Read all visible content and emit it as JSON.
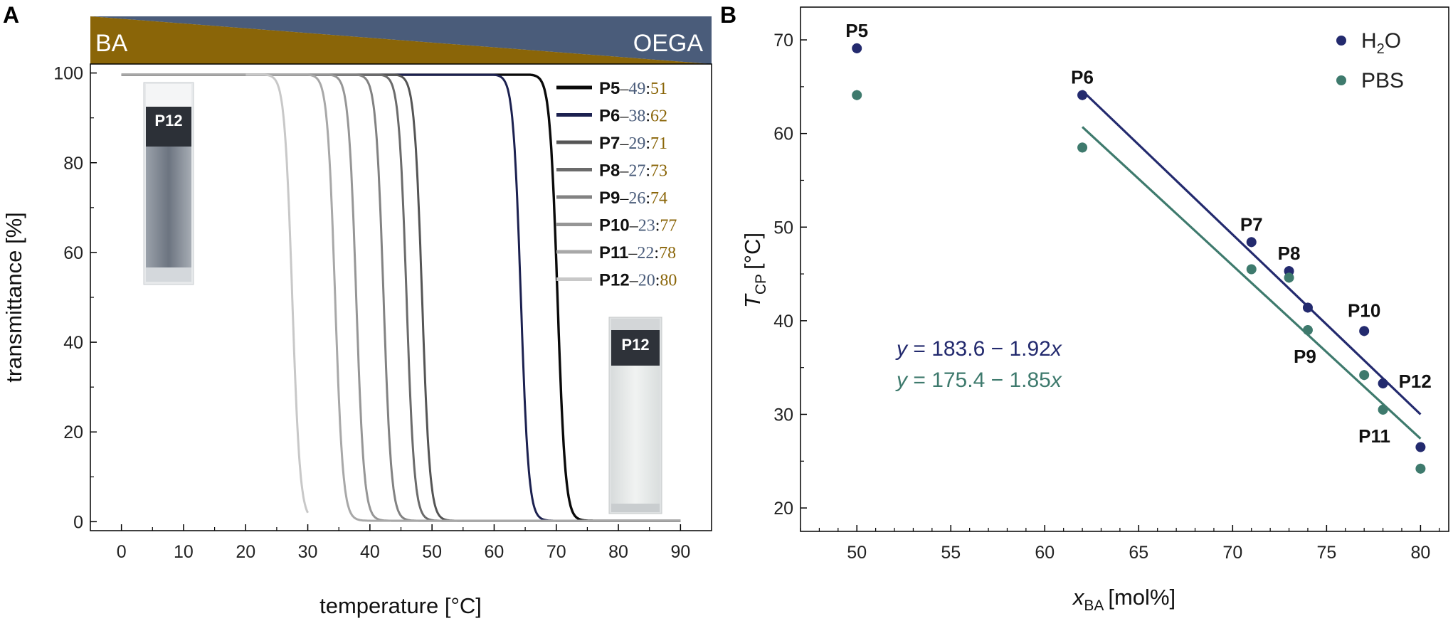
{
  "chart_data": [
    {
      "panel": "A",
      "type": "line",
      "xlabel": "temperature [°C]",
      "ylabel": "transmittance [%]",
      "xlim": [
        -5,
        95
      ],
      "ylim": [
        -2,
        102
      ],
      "xticks": [
        "0",
        "10",
        "20",
        "30",
        "40",
        "50",
        "60",
        "70",
        "80",
        "90"
      ],
      "yticks": [
        "0",
        "20",
        "40",
        "60",
        "80",
        "100"
      ],
      "gradient_bar": {
        "left_label": "BA",
        "right_label": "OEGA",
        "left_color": "#8a6508",
        "right_color": "#4a5c7a"
      },
      "legend_placement": "top-right",
      "ratio_colors": {
        "ba": "#4a5c7a",
        "oega": "#8a6508"
      },
      "cuvettes": [
        {
          "label": "P12",
          "state": "clear",
          "temperature": 20
        },
        {
          "label": "P12",
          "state": "turbid",
          "temperature": 80
        }
      ],
      "series": [
        {
          "name": "P5",
          "ratio_a": "49",
          "ratio_b": "51",
          "color": "#0a0a0a",
          "x_start": 0,
          "x_end": 90,
          "tcp": 70.2,
          "width": 2.0
        },
        {
          "name": "P6",
          "ratio_a": "38",
          "ratio_b": "62",
          "color": "#1c2150",
          "x_start": 0,
          "x_end": 90,
          "tcp": 64.3,
          "width": 1.6
        },
        {
          "name": "P7",
          "ratio_a": "29",
          "ratio_b": "71",
          "color": "#555555",
          "x_start": 0,
          "x_end": 90,
          "tcp": 48.4,
          "width": 1.6
        },
        {
          "name": "P8",
          "ratio_a": "27",
          "ratio_b": "73",
          "color": "#6b6b6b",
          "x_start": 0,
          "x_end": 90,
          "tcp": 45.9,
          "width": 1.6
        },
        {
          "name": "P9",
          "ratio_a": "26",
          "ratio_b": "74",
          "color": "#828282",
          "x_start": 0,
          "x_end": 90,
          "tcp": 42.2,
          "width": 1.6
        },
        {
          "name": "P10",
          "ratio_a": "23",
          "ratio_b": "77",
          "color": "#969696",
          "x_start": 0,
          "x_end": 90,
          "tcp": 37.8,
          "width": 1.6
        },
        {
          "name": "P11",
          "ratio_a": "22",
          "ratio_b": "78",
          "color": "#a8a8a8",
          "x_start": 0,
          "x_end": 90,
          "tcp": 34.4,
          "width": 1.6
        },
        {
          "name": "P12",
          "ratio_a": "20",
          "ratio_b": "80",
          "color": "#c8c8c8",
          "x_start": 20,
          "x_end": 30,
          "tcp": 27.5,
          "width": 1.6
        }
      ]
    },
    {
      "panel": "B",
      "type": "scatter",
      "xlabel": "x",
      "xlabel_sub": "BA",
      "xlabel_unit": "[mol%]",
      "ylabel": "T",
      "ylabel_sub": "CP",
      "ylabel_unit": "[°C]",
      "xlim": [
        47,
        81.5
      ],
      "ylim": [
        17.5,
        73.5
      ],
      "xticks": [
        "50",
        "55",
        "60",
        "65",
        "70",
        "75",
        "80"
      ],
      "yticks": [
        "20",
        "30",
        "40",
        "50",
        "60",
        "70"
      ],
      "legend_placement": "top-right",
      "legend": [
        {
          "name_main": "H",
          "name_sub": "2",
          "name_tail": "O",
          "color": "#232a6e"
        },
        {
          "name_main": "PBS",
          "name_sub": "",
          "name_tail": "",
          "color": "#3e7a6d"
        }
      ],
      "series": [
        {
          "name": "H2O",
          "color": "#232a6e",
          "x": [
            50,
            62,
            71,
            73,
            74,
            77,
            78,
            80
          ],
          "y": [
            69.1,
            64.1,
            48.4,
            45.3,
            41.4,
            38.9,
            33.3,
            26.5
          ]
        },
        {
          "name": "PBS",
          "color": "#3e7a6d",
          "x": [
            50,
            62,
            71,
            73,
            74,
            77,
            78,
            80
          ],
          "y": [
            64.1,
            58.5,
            45.5,
            44.6,
            39.0,
            34.2,
            30.5,
            24.2
          ]
        }
      ],
      "fits": [
        {
          "label_y": "y",
          "label_eq": " = 183.6 − 1.92",
          "label_x": "x",
          "intercept": 183.6,
          "slope": -1.92,
          "color": "#232a6e",
          "x_range": [
            62,
            80
          ]
        },
        {
          "label_y": "y",
          "label_eq": " = 175.4 − 1.85",
          "label_x": "x",
          "intercept": 175.4,
          "slope": -1.85,
          "color": "#3e7a6d",
          "x_range": [
            62,
            80
          ]
        }
      ],
      "point_labels": [
        {
          "text": "P5",
          "x": 50,
          "y": 69.1,
          "pos": "above"
        },
        {
          "text": "P6",
          "x": 62,
          "y": 64.1,
          "pos": "above"
        },
        {
          "text": "P7",
          "x": 71,
          "y": 48.4,
          "pos": "above"
        },
        {
          "text": "P8",
          "x": 73,
          "y": 45.3,
          "pos": "above"
        },
        {
          "text": "P9",
          "x": 74,
          "y": 39.0,
          "pos": "below"
        },
        {
          "text": "P10",
          "x": 77,
          "y": 38.9,
          "pos": "above"
        },
        {
          "text": "P11",
          "x": 78,
          "y": 30.5,
          "pos": "below"
        },
        {
          "text": "P12",
          "x": 78,
          "y": 33.3,
          "pos": "right"
        }
      ]
    }
  ]
}
